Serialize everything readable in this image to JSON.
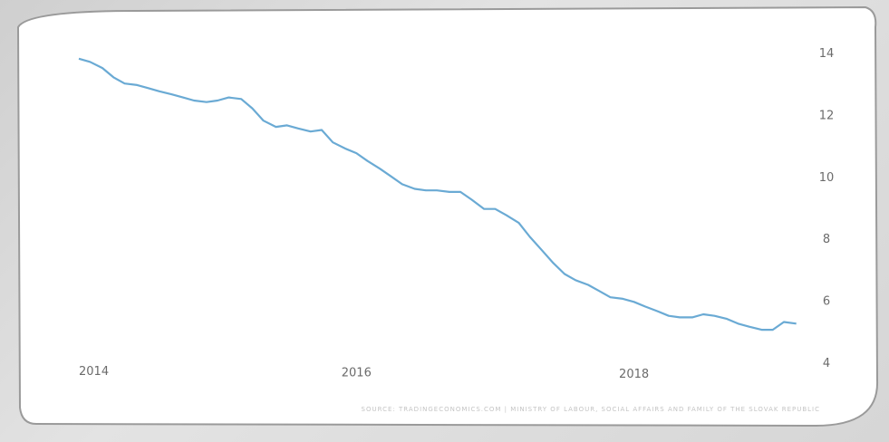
{
  "chart_data": {
    "type": "line",
    "series": [
      {
        "x": [
          2014.0,
          2014.08,
          2014.17,
          2014.25,
          2014.33,
          2014.42,
          2014.5,
          2014.58,
          2014.67,
          2014.75,
          2014.83,
          2014.92,
          2015.0,
          2015.08,
          2015.17,
          2015.25,
          2015.33,
          2015.42,
          2015.5,
          2015.58,
          2015.67,
          2015.75,
          2015.83,
          2015.92,
          2016.0,
          2016.08,
          2016.17,
          2016.25,
          2016.33,
          2016.42,
          2016.5,
          2016.58,
          2016.67,
          2016.75,
          2016.83,
          2016.92,
          2017.0,
          2017.08,
          2017.17,
          2017.25,
          2017.33,
          2017.42,
          2017.5,
          2017.58,
          2017.67,
          2017.75,
          2017.83,
          2017.92,
          2018.0,
          2018.08,
          2018.17,
          2018.25,
          2018.33,
          2018.42,
          2018.5,
          2018.58,
          2018.67,
          2018.75,
          2018.83,
          2018.92,
          2019.0,
          2019.08,
          2019.17
        ],
        "values": [
          13.8,
          13.7,
          13.5,
          13.2,
          13.0,
          12.95,
          12.85,
          12.75,
          12.65,
          12.55,
          12.45,
          12.4,
          12.45,
          12.55,
          12.5,
          12.2,
          11.8,
          11.6,
          11.65,
          11.55,
          11.45,
          11.5,
          11.1,
          10.9,
          10.75,
          10.5,
          10.25,
          10.0,
          9.75,
          9.6,
          9.55,
          9.55,
          9.5,
          9.5,
          9.25,
          8.95,
          8.95,
          8.75,
          8.5,
          8.05,
          7.65,
          7.2,
          6.85,
          6.65,
          6.5,
          6.3,
          6.1,
          6.05,
          5.95,
          5.8,
          5.65,
          5.5,
          5.45,
          5.45,
          5.55,
          5.5,
          5.4,
          5.25,
          5.15,
          5.05,
          5.05,
          5.3,
          5.25
        ]
      }
    ],
    "x_ticks": [
      "2014",
      "2016",
      "2018"
    ],
    "y_ticks": [
      "14",
      "12",
      "10",
      "8",
      "6",
      "4"
    ],
    "xlim": [
      2014,
      2019.25
    ],
    "ylim": [
      4,
      14
    ],
    "y_axis_side": "right",
    "grid": false,
    "line_color": "#6aaad4",
    "title": "",
    "xlabel": "",
    "ylabel": "",
    "source_note": "SOURCE: TRADINGECONOMICS.COM | MINISTRY OF LABOUR, SOCIAL AFFAIRS AND FAMILY OF THE SLOVAK REPUBLIC"
  }
}
